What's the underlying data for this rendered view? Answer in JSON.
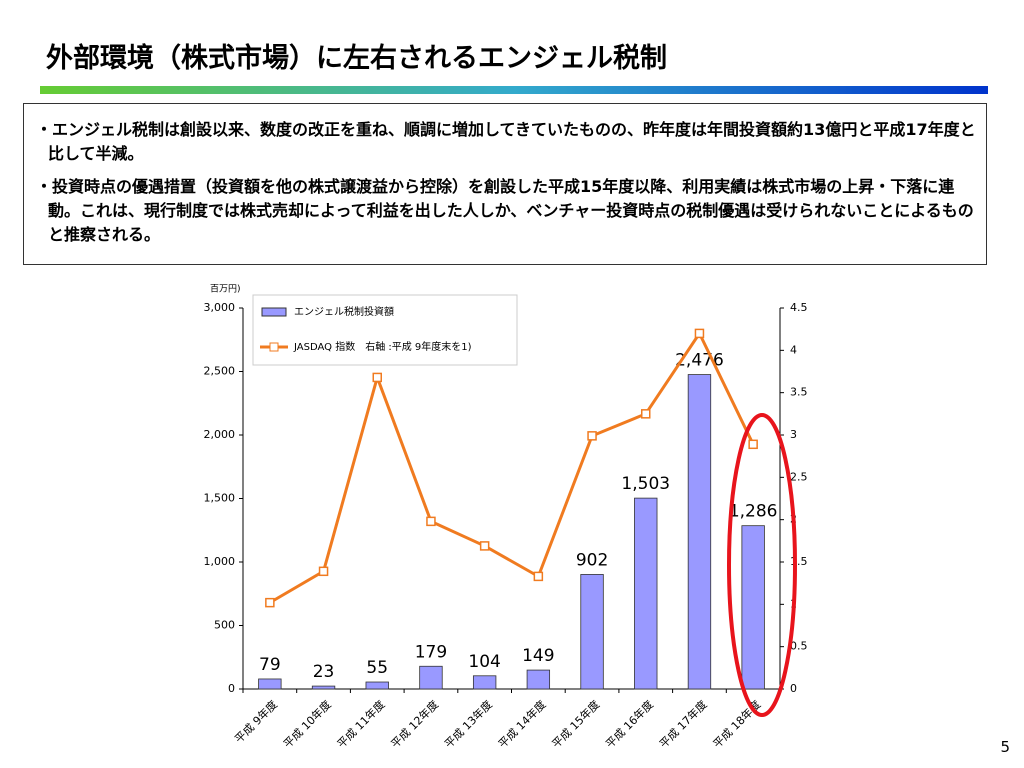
{
  "slide": {
    "title": "外部環境（株式市場）に左右されるエンジェル税制",
    "bullets": [
      "エンジェル税制は創設以来、数度の改正を重ね、順調に増加してきていたものの、昨年度は年間投資額約13億円と平成17年度と比して半減。",
      "投資時点の優遇措置（投資額を他の株式譲渡益から控除）を創設した平成15年度以降、利用実績は株式市場の上昇・下落に連動。これは、現行制度では株式売却によって利益を出した人しか、ベンチャー投資時点の税制優遇は受けられないことによるものと推察される。"
    ],
    "page_number": "5"
  },
  "chart_data": {
    "type": "bar",
    "y_label": "百万円)",
    "categories": [
      "平成 9年度",
      "平成 10年度",
      "平成 11年度",
      "平成 12年度",
      "平成 13年度",
      "平成 14年度",
      "平成 15年度",
      "平成 16年度",
      "平成 17年度",
      "平成 18年度"
    ],
    "series": [
      {
        "name": "エンジェル税制投資額",
        "color": "#9999ff",
        "values": [
          79,
          23,
          55,
          179,
          104,
          149,
          902,
          1503,
          2476,
          1286
        ],
        "value_labels": [
          "79",
          "23",
          "55",
          "179",
          "104",
          "149",
          "902",
          "1,503",
          "2,476",
          "1,286"
        ]
      },
      {
        "name": "JASDAQ 指数　右軸 :平成 9年度末を1)",
        "type": "line",
        "axis": "y2",
        "color": "#f07b20",
        "values": [
          1.02,
          1.39,
          3.68,
          1.98,
          1.69,
          1.33,
          2.99,
          3.25,
          4.2,
          2.89
        ]
      }
    ],
    "ylim": [
      0,
      3000
    ],
    "yticks": [
      0,
      500,
      {
        "value": 1000,
        "label": "1,000"
      },
      {
        "value": 1500,
        "label": "1,500"
      },
      {
        "value": 2000,
        "label": "2,000"
      },
      {
        "value": 2500,
        "label": "2,500"
      },
      {
        "value": 3000,
        "label": "3,000"
      }
    ],
    "y2lim": [
      0,
      4.5
    ],
    "y2ticks": [
      0,
      0.5,
      1,
      1.5,
      2,
      2.5,
      3,
      3.5,
      4,
      4.5
    ]
  }
}
